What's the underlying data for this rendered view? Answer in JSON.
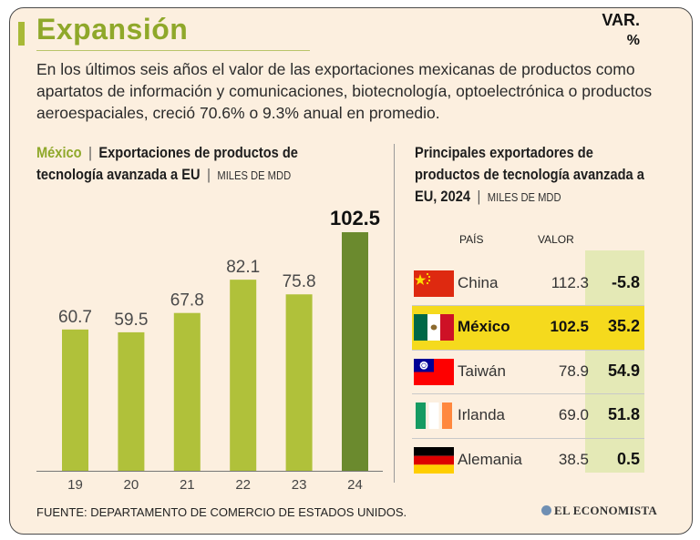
{
  "title": "Expansión",
  "intro": "En los últimos seis años el valor de las exportaciones mexicanas de productos como apartatos de información y comunicaciones, biotecnología, optoelectrónica o productos aeroespaciales, creció 70.6% o 9.3% anual en promedio.",
  "left_chart": {
    "title_highlight": "México",
    "title_sep": "|",
    "title_main": "Exportaciones de productos de tecnología avanzada a EU",
    "title_unit": "MILES DE MDD"
  },
  "chart_data": {
    "type": "bar",
    "categories": [
      "19",
      "20",
      "21",
      "22",
      "23",
      "24"
    ],
    "values": [
      60.7,
      59.5,
      67.8,
      82.1,
      75.8,
      102.5
    ],
    "labels": [
      "60.7",
      "59.5",
      "67.8",
      "82.1",
      "75.8",
      "102.5"
    ],
    "title": "Exportaciones de productos de tecnología avanzada a EU",
    "xlabel": "",
    "ylabel": "",
    "ylim": [
      0,
      102.5
    ],
    "grid": false,
    "colors": {
      "bar": "#b0c13a",
      "highlight": "#6b8a2e"
    }
  },
  "right_table": {
    "title_main": "Principales exportadores de productos de tecnología avanzada a EU, 2024",
    "title_sep": "|",
    "title_unit": "MILES DE MDD",
    "headers": {
      "country": "PAÍS",
      "value": "VALOR",
      "var": "VAR.",
      "var_unit": "%"
    },
    "rows": [
      {
        "country": "China",
        "value": "112.3",
        "var": "-5.8",
        "flag": "china-flag-icon"
      },
      {
        "country": "México",
        "value": "102.5",
        "var": "35.2",
        "flag": "mexico-flag-icon",
        "highlight": true
      },
      {
        "country": "Taiwán",
        "value": "78.9",
        "var": "54.9",
        "flag": "taiwan-flag-icon"
      },
      {
        "country": "Irlanda",
        "value": "69.0",
        "var": "51.8",
        "flag": "ireland-flag-icon"
      },
      {
        "country": "Alemania",
        "value": "38.5",
        "var": "0.5",
        "flag": "germany-flag-icon"
      }
    ]
  },
  "source": "FUENTE: DEPARTAMENTO DE COMERCIO DE ESTADOS UNIDOS.",
  "logo": "EL ECONOMISTA"
}
